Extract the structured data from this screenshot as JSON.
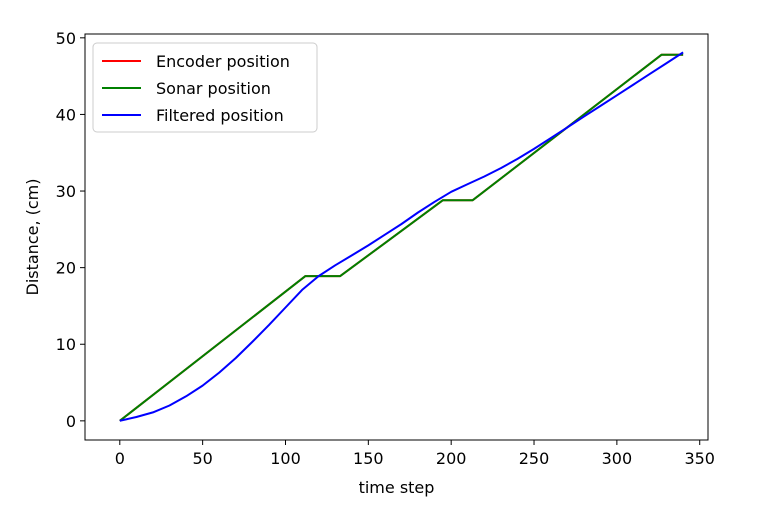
{
  "chart_data": {
    "type": "line",
    "title": "",
    "xlabel": "time step",
    "ylabel": "Distance, (cm)",
    "xlim": [
      -21,
      355
    ],
    "ylim": [
      -2.5,
      50.5
    ],
    "xticks": [
      0,
      50,
      100,
      150,
      200,
      250,
      300,
      350
    ],
    "yticks": [
      0,
      10,
      20,
      30,
      40,
      50
    ],
    "grid": false,
    "legend_position": "upper-left",
    "series": [
      {
        "name": "Encoder position",
        "color": "#ff0000",
        "x": [
          0,
          112,
          133,
          195,
          213,
          327,
          340
        ],
        "y": [
          0,
          18.9,
          18.9,
          28.8,
          28.8,
          47.8,
          47.8
        ]
      },
      {
        "name": "Sonar position",
        "color": "#008000",
        "x": [
          0,
          112,
          133,
          195,
          213,
          327,
          340
        ],
        "y": [
          0,
          18.9,
          18.9,
          28.8,
          28.8,
          47.8,
          47.8
        ]
      },
      {
        "name": "Filtered position",
        "color": "#0000ff",
        "x": [
          0,
          10,
          20,
          30,
          40,
          50,
          60,
          70,
          80,
          90,
          100,
          110,
          120,
          130,
          140,
          150,
          160,
          170,
          180,
          190,
          200,
          210,
          220,
          230,
          240,
          250,
          260,
          270,
          280,
          290,
          300,
          310,
          320,
          330,
          340
        ],
        "y": [
          0,
          0.5,
          1.1,
          2.0,
          3.2,
          4.6,
          6.3,
          8.2,
          10.3,
          12.5,
          14.8,
          17.1,
          18.9,
          20.3,
          21.6,
          22.9,
          24.3,
          25.7,
          27.2,
          28.6,
          29.9,
          30.9,
          31.9,
          33.0,
          34.2,
          35.5,
          36.9,
          38.3,
          39.7,
          41.1,
          42.5,
          43.9,
          45.3,
          46.7,
          48.1
        ]
      }
    ]
  }
}
